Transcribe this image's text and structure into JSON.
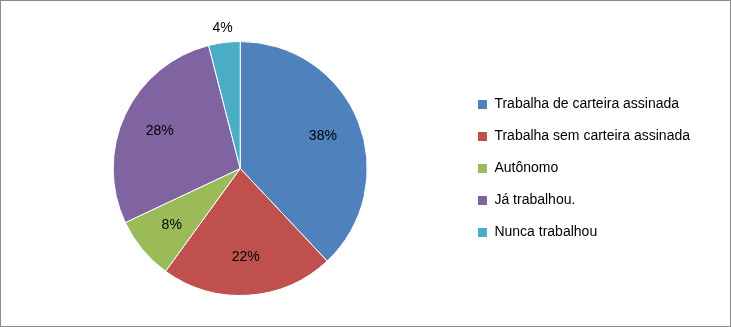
{
  "chart_data": {
    "type": "pie",
    "categories": [
      "Trabalha de carteira assinada",
      "Trabalha sem carteira assinada",
      "Autônomo",
      "Já trabalhou.",
      "Nunca trabalhou"
    ],
    "values": [
      38,
      22,
      8,
      28,
      4
    ],
    "value_labels": [
      "38%",
      "22%",
      "8%",
      "28%",
      "4%"
    ],
    "colors": [
      "#4f81bd",
      "#c0504d",
      "#9bbb59",
      "#8064a2",
      "#4bacc6"
    ],
    "legend": "right",
    "data_labels": true
  }
}
